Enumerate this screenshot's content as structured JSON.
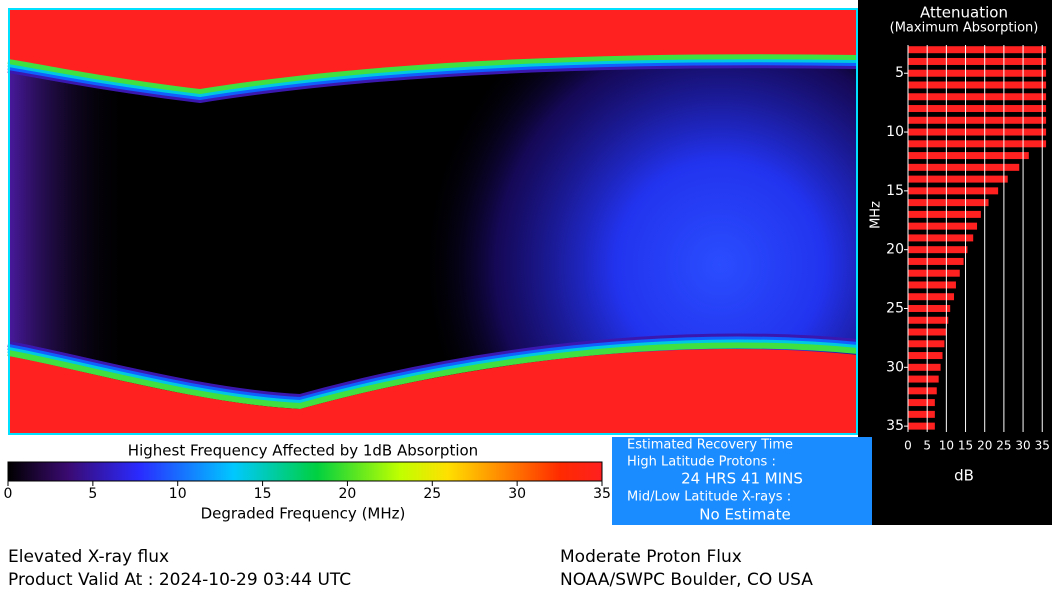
{
  "colorbar": {
    "title": "Highest Frequency Affected by 1dB Absorption",
    "label": "Degraded Frequency (MHz)",
    "lim": [
      0,
      35
    ],
    "ticks": [
      0,
      5,
      10,
      15,
      20,
      25,
      30,
      35
    ]
  },
  "recovery": {
    "title": "Estimated Recovery Time",
    "high_label": "High Latitude Protons :",
    "high_value": "24 HRS 41 MINS",
    "low_label": "Mid/Low Latitude X-rays :",
    "low_value": "No Estimate"
  },
  "footer": {
    "xray": "Elevated X-ray flux",
    "valid": "Product Valid At : 2024-10-29 03:44 UTC",
    "proton": "Moderate Proton Flux",
    "source": "NOAA/SWPC Boulder, CO USA"
  },
  "chart_data": {
    "type": "bar",
    "orientation": "horizontal",
    "title": "Attenuation",
    "subtitle": "(Maximum Absorption)",
    "x_label": "MHz",
    "y_label": "dB",
    "color": "#ff2020",
    "x": [
      3,
      4,
      5,
      6,
      7,
      8,
      9,
      10,
      11,
      12,
      13,
      14,
      15,
      16,
      17,
      18,
      19,
      20,
      21,
      22,
      23,
      24,
      25,
      26,
      27,
      28,
      29,
      30,
      31,
      32,
      33,
      34,
      35
    ],
    "values": [
      36,
      36,
      36,
      36,
      36,
      36,
      36,
      36,
      36,
      31.5,
      29,
      26,
      23.5,
      21,
      19,
      18,
      17,
      15.5,
      14.5,
      13.5,
      12.5,
      12,
      11,
      10.5,
      10,
      9.5,
      9,
      8.5,
      8,
      7.5,
      7,
      7,
      7
    ],
    "xlim": [
      2.6,
      35.5
    ],
    "xticks": [
      5,
      10,
      15,
      20,
      25,
      30,
      35
    ],
    "ylim": [
      0,
      36.5
    ],
    "yticks": [
      0,
      5,
      10,
      15,
      20,
      25,
      30,
      35
    ],
    "grid": true
  }
}
